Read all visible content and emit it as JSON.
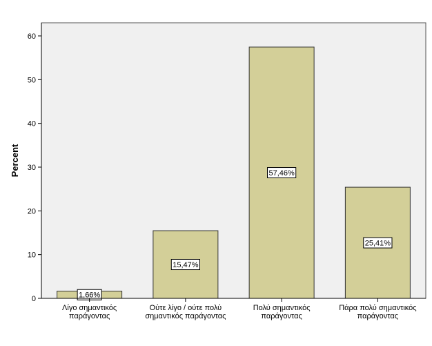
{
  "chart_data": {
    "type": "bar",
    "categories": [
      [
        "Λίγο σημαντικός",
        "παράγοντας"
      ],
      [
        "Ούτε λίγο / ούτε πολύ",
        "σημαντικός παράγοντας"
      ],
      [
        "Πολύ σημαντικός",
        "παράγοντας"
      ],
      [
        "Πάρα πολύ σημαντικός",
        "παράγοντας"
      ]
    ],
    "values": [
      1.66,
      15.47,
      57.46,
      25.41
    ],
    "data_labels": [
      "1,66%",
      "15,47%",
      "57,46%",
      "25,41%"
    ],
    "title": "",
    "xlabel": "",
    "ylabel": "Percent",
    "ylim": [
      0,
      63
    ],
    "yticks": [
      0,
      10,
      20,
      30,
      40,
      50,
      60
    ],
    "grid": false,
    "colors": {
      "plot_background": "#f0f0f0",
      "bar_fill": "#d3cf98",
      "bar_stroke": "#333333"
    }
  }
}
